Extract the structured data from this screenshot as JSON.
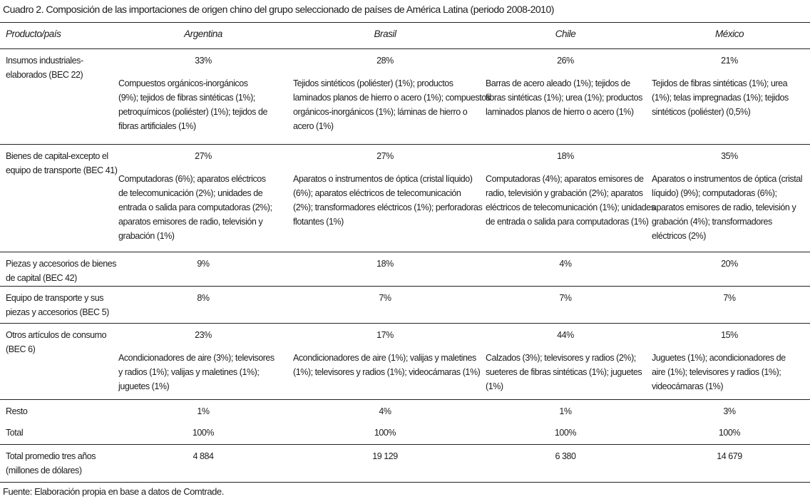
{
  "title": "Cuadro 2. Composición de las importaciones de origen chino del grupo seleccionado de países de América Latina (periodo 2008-2010)",
  "header": [
    "Producto/país",
    "Argentina",
    "Brasil",
    "Chile",
    "México"
  ],
  "rows": [
    {
      "label": [
        "Insumos industriales-",
        "elaborados (BEC 22)"
      ],
      "cells": [
        {
          "pct": "33%",
          "detail": [
            "Compuestos orgánicos-inorgánicos",
            "(9%); tejidos de fibras sintéticas (1%);",
            "petroquímicos (poliéster) (1%); tejidos de",
            "fibras artificiales (1%)"
          ]
        },
        {
          "pct": "28%",
          "detail": [
            "Tejidos sintéticos (poliéster) (1%); productos",
            "laminados planos de hierro o acero (1%); compuestos",
            "orgánicos-inorgánicos (1%); láminas de hierro o",
            "acero (1%)"
          ]
        },
        {
          "pct": "26%",
          "detail": [
            "Barras de acero aleado (1%); tejidos de",
            "fibras sintéticas (1%); urea (1%); productos",
            "laminados planos de hierro o acero (1%)"
          ]
        },
        {
          "pct": "21%",
          "detail": [
            "Tejidos de fibras sintéticas (1%); urea",
            "(1%); telas impregnadas (1%); tejidos",
            "sintéticos (poliéster) (0,5%)"
          ]
        }
      ]
    },
    {
      "label": [
        "Bienes de capital-excepto el",
        "equipo de transporte (BEC 41)"
      ],
      "cells": [
        {
          "pct": "27%",
          "detail": [
            "Computadoras (6%); aparatos eléctricos",
            "de telecomunicación (2%); unidades de",
            "entrada o salida para computadoras (2%);",
            "aparatos emisores de radio, televisión y",
            "grabación (1%)"
          ]
        },
        {
          "pct": "27%",
          "detail": [
            "Aparatos o instrumentos de óptica (cristal líquido)",
            "(6%); aparatos eléctricos de telecomunicación",
            "(2%); transformadores eléctricos (1%); perforadoras",
            "flotantes (1%)"
          ]
        },
        {
          "pct": "18%",
          "detail": [
            "Computadoras (4%); aparatos emisores de",
            "radio, televisión y grabación (2%); aparatos",
            "eléctricos de telecomunicación (1%); unidades",
            "de entrada o salida para computadoras (1%)"
          ]
        },
        {
          "pct": "35%",
          "detail": [
            "Aparatos o instrumentos de óptica (cristal",
            "líquido) (9%); computadoras (6%);",
            "aparatos emisores de radio, televisión y",
            "grabación (4%); transformadores",
            "eléctricos (2%)"
          ]
        }
      ]
    },
    {
      "label": [
        "Piezas y accesorios de bienes",
        "de capital (BEC 42)"
      ],
      "cells": [
        {
          "pct": "9%"
        },
        {
          "pct": "18%"
        },
        {
          "pct": "4%"
        },
        {
          "pct": "20%"
        }
      ]
    },
    {
      "label": [
        "Equipo de transporte y sus",
        "piezas y accesorios (BEC 5)"
      ],
      "cells": [
        {
          "pct": "8%"
        },
        {
          "pct": "7%"
        },
        {
          "pct": "7%"
        },
        {
          "pct": "7%"
        }
      ]
    },
    {
      "label": [
        "Otros artículos de consumo",
        "(BEC 6)"
      ],
      "cells": [
        {
          "pct": "23%",
          "detail": [
            "Acondicionadores de aire (3%); televisores",
            "y radios (1%); valijas y maletines (1%);",
            "juguetes (1%)"
          ]
        },
        {
          "pct": "17%",
          "detail": [
            "Acondicionadores de aire (1%); valijas y maletines",
            "(1%); televisores y radios (1%); videocámaras (1%)"
          ]
        },
        {
          "pct": "44%",
          "detail": [
            "Calzados (3%); televisores y radios (2%);",
            "sueteres de fibras sintéticas (1%); juguetes",
            "(1%)"
          ]
        },
        {
          "pct": "15%",
          "detail": [
            "Juguetes (1%); acondicionadores de",
            "aire (1%); televisores y radios (1%);",
            "videocámaras (1%)"
          ]
        }
      ]
    },
    {
      "label": [
        "Resto"
      ],
      "cells": [
        {
          "pct": "1%"
        },
        {
          "pct": "4%"
        },
        {
          "pct": "1%"
        },
        {
          "pct": "3%"
        }
      ]
    },
    {
      "label": [
        "Total"
      ],
      "cells": [
        {
          "pct": "100%"
        },
        {
          "pct": "100%"
        },
        {
          "pct": "100%"
        },
        {
          "pct": "100%"
        }
      ]
    },
    {
      "label": [
        "Total promedio tres años",
        "(millones de dólares)"
      ],
      "cells": [
        {
          "pct": "4 884"
        },
        {
          "pct": "19 129"
        },
        {
          "pct": "6 380"
        },
        {
          "pct": "14 679"
        }
      ]
    }
  ],
  "source": "Fuente: Elaboración propia en base a datos de Comtrade."
}
